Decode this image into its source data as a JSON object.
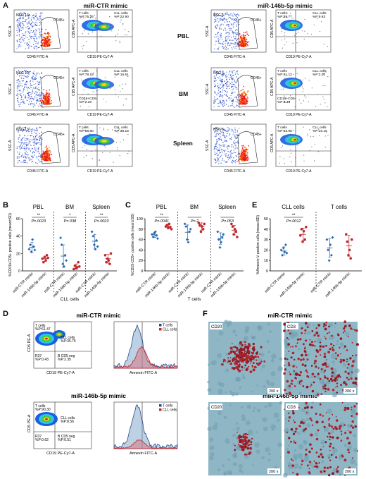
{
  "panel_A": {
    "letter": "A",
    "left_title": "miR-CTR mimic",
    "right_title": "miR-146b-5p mimic",
    "rows": [
      "PBL",
      "BM",
      "Spleen"
    ],
    "plots": [
      {
        "row": "PBL",
        "side": "left",
        "mouse": "NSG 13",
        "tl_name": "T cells",
        "tl_pct": "%P:75.26",
        "tr_name": "CLL cells",
        "tr_pct": "%P:22.90",
        "bl_name": "",
        "bl_pct": ""
      },
      {
        "row": "PBL",
        "side": "right",
        "mouse": "NSG 5",
        "tl_name": "T cells",
        "tl_pct": "%P:88.77",
        "tr_name": "CLL cells",
        "tr_pct": "%P:9.93",
        "bl_name": "",
        "bl_pct": ""
      },
      {
        "row": "BM",
        "side": "left",
        "mouse": "NSG 13",
        "tl_name": "T cells",
        "tl_pct": "%P:79.18",
        "tr_name": "CLL cells",
        "tr_pct": "%P:16.51",
        "bl_name": "CD19+CD5-",
        "bl_pct": "%P:2.20"
      },
      {
        "row": "BM",
        "side": "right",
        "mouse": "NSG 5",
        "tl_name": "T cells",
        "tl_pct": "%P:91.12",
        "tr_name": "CLL cells",
        "tr_pct": "%P:2.00",
        "bl_name": "CD19+CD5-",
        "bl_pct": "%P:3.38"
      },
      {
        "row": "Spleen",
        "side": "left",
        "mouse": "NSG 13",
        "tl_name": "T cells",
        "tl_pct": "%P:58.80",
        "tr_name": "CLL cells",
        "tr_pct": "%P:38.18",
        "bl_name": "",
        "bl_pct": ""
      },
      {
        "row": "Spleen",
        "side": "right",
        "mouse": "NSG 5",
        "tl_name": "T cells",
        "tl_pct": "%P:83.05",
        "tr_name": "CLL cells",
        "tr_pct": "%P:10.15",
        "bl_name": "",
        "bl_pct": ""
      }
    ],
    "gate_label": "CD45+",
    "ssc_label": "SSC-A",
    "cd45_label": "CD45 FITC-A",
    "cd5_label": "CD5 APC-A",
    "cd19_label": "CD19 PE-Cy7-A"
  },
  "panel_B": {
    "letter": "B",
    "ylabel": "%CD19+CD5+ positive cells (mean±SD)",
    "xlabel": "CLL cells",
    "groups": [
      "PBL",
      "BM",
      "Spleen"
    ],
    "pvals": [
      "P=.0023",
      "P=.038",
      "P=.0023"
    ],
    "stars": [
      "**",
      "*",
      "**"
    ],
    "cat_labels": [
      "miR-CTR mimic",
      "miR-146b-5p mimic"
    ]
  },
  "panel_C": {
    "letter": "C",
    "ylabel": "%CD19-CD5+ positive cells (mean±SD)",
    "xlabel": "T cells",
    "groups": [
      "PBL",
      "BM",
      "Spleen"
    ],
    "pvals": [
      "P=.0041",
      "P=.2",
      "P=.053"
    ],
    "stars": [
      "**",
      "",
      ""
    ],
    "cat_labels": [
      "miR-CTR mimic",
      "miR-146b-5p mimic"
    ]
  },
  "panel_E": {
    "letter": "E",
    "ylabel": "%Annexin-V positive cells (mean±SD)",
    "groups": [
      "CLL cells",
      "T cells"
    ],
    "pvals": [
      "P=.0012",
      ""
    ],
    "stars": [
      "**",
      ""
    ],
    "cat_labels": [
      "miR-CTR mimic",
      "miR-146b-5p mimic"
    ]
  },
  "panel_D": {
    "letter": "D",
    "titles": [
      "miR-CTR mimic",
      "miR-146b-5p mimic"
    ],
    "plots": [
      {
        "tl_name": "T cells",
        "tl_pct": "%P:61.47",
        "tr_name": "CLL cells",
        "tr_pct": "%P:35.75",
        "bl_name": "R37",
        "bl_pct": "%P:0.43",
        "br_name": "B CD5 neg",
        "br_pct": "%P:2.35"
      },
      {
        "tl_name": "T cells",
        "tl_pct": "%P:90.30",
        "tr_name": "CLL cells",
        "tr_pct": "%P:8.56",
        "bl_name": "R37",
        "bl_pct": "%P:0.62",
        "br_name": "B CD5 neg",
        "br_pct": "%P:0.51"
      }
    ],
    "cd5_label": "CD5 PE-A",
    "cd19_label": "CD19 PE-Cy7-A",
    "annexin_label": "Annexin FITC-A",
    "legend": [
      "T cells",
      "CLL cells"
    ]
  },
  "panel_F": {
    "letter": "F",
    "titles": [
      "miR-CTR mimic",
      "miR-146b-5p mimic"
    ],
    "stains": [
      "CD20",
      "CD3",
      "CD20",
      "CD3"
    ],
    "mag": "200 x"
  },
  "chart_data": [
    {
      "type": "scatter",
      "name_ref": "B",
      "ylabel": "%CD19+CD5+ positive cells (mean±SD)",
      "xlabel": "CLL cells",
      "ylim": [
        0,
        60
      ],
      "yticks": [
        0,
        20,
        40,
        60
      ],
      "groups": [
        {
          "group": "PBL",
          "ctr": [
            25,
            30,
            22,
            36,
            28,
            24
          ],
          "mir": [
            14,
            10,
            16,
            12,
            18,
            15
          ],
          "ctr_mean": 27,
          "ctr_sd": 6,
          "mir_mean": 14,
          "mir_sd": 3
        },
        {
          "group": "BM",
          "ctr": [
            38,
            30,
            8,
            5,
            18,
            12
          ],
          "mir": [
            2,
            6,
            3,
            4,
            10,
            5
          ],
          "ctr_mean": 17,
          "ctr_sd": 13,
          "mir_mean": 5,
          "mir_sd": 3
        },
        {
          "group": "Spleen",
          "ctr": [
            45,
            40,
            30,
            25,
            35,
            28
          ],
          "mir": [
            18,
            10,
            14,
            12,
            8,
            20
          ],
          "ctr_mean": 34,
          "ctr_sd": 8,
          "mir_mean": 14,
          "mir_sd": 5
        }
      ]
    },
    {
      "type": "scatter",
      "name_ref": "C",
      "ylabel": "%CD19-CD5+ positive cells (mean±SD)",
      "xlabel": "T cells",
      "ylim": [
        0,
        100
      ],
      "yticks": [
        0,
        20,
        40,
        60,
        80,
        100
      ],
      "groups": [
        {
          "group": "PBL",
          "ctr": [
            70,
            65,
            72,
            75,
            68,
            62
          ],
          "mir": [
            85,
            88,
            82,
            90,
            84,
            80
          ],
          "ctr_mean": 69,
          "ctr_sd": 5,
          "mir_mean": 85,
          "mir_sd": 4
        },
        {
          "group": "BM",
          "ctr": [
            90,
            85,
            60,
            55,
            75,
            80
          ],
          "mir": [
            92,
            88,
            75,
            85,
            80,
            90
          ],
          "ctr_mean": 74,
          "ctr_sd": 14,
          "mir_mean": 85,
          "mir_sd": 7
        },
        {
          "group": "Spleen",
          "ctr": [
            75,
            60,
            45,
            55,
            65,
            70
          ],
          "mir": [
            90,
            85,
            70,
            80,
            75,
            65
          ],
          "ctr_mean": 62,
          "ctr_sd": 11,
          "mir_mean": 78,
          "mir_sd": 9
        }
      ]
    },
    {
      "type": "scatter",
      "name_ref": "E",
      "ylabel": "%Annexin-V positive cells (mean±SD)",
      "ylim": [
        0,
        50
      ],
      "yticks": [
        0,
        10,
        20,
        30,
        40,
        50
      ],
      "groups": [
        {
          "group": "CLL cells",
          "ctr": [
            20,
            15,
            22,
            18,
            25,
            17
          ],
          "mir": [
            34,
            40,
            28,
            38,
            30,
            42
          ],
          "ctr_mean": 19,
          "ctr_sd": 4,
          "mir_mean": 35,
          "mir_sd": 6
        },
        {
          "group": "T cells",
          "ctr": [
            30,
            20,
            10,
            25,
            15,
            32
          ],
          "mir": [
            35,
            28,
            15,
            20,
            12,
            30
          ],
          "ctr_mean": 22,
          "ctr_sd": 9,
          "mir_mean": 24,
          "mir_sd": 10
        }
      ]
    }
  ]
}
